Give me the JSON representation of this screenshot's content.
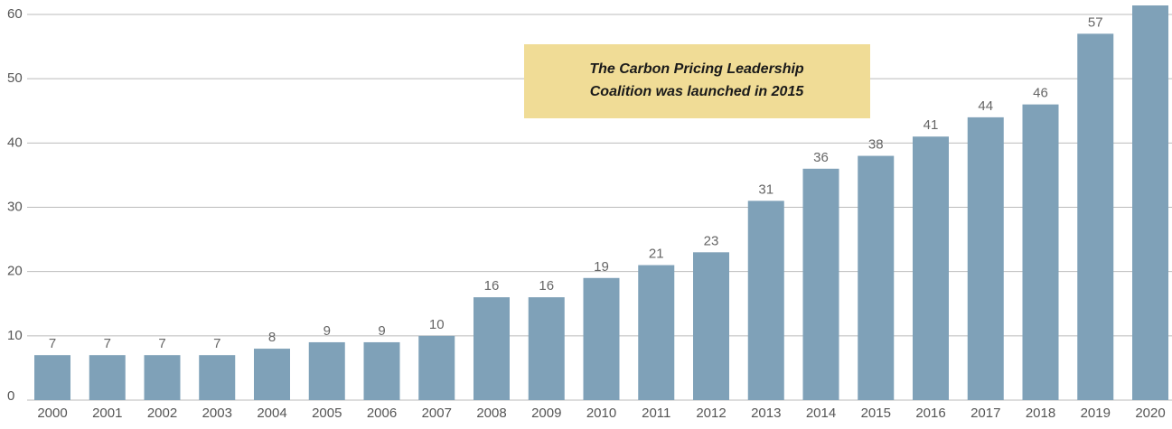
{
  "chart_data": {
    "type": "bar",
    "categories": [
      "2000",
      "2001",
      "2002",
      "2003",
      "2004",
      "2005",
      "2006",
      "2007",
      "2008",
      "2009",
      "2010",
      "2011",
      "2012",
      "2013",
      "2014",
      "2015",
      "2016",
      "2017",
      "2018",
      "2019",
      "2020"
    ],
    "values": [
      7,
      7,
      7,
      7,
      8,
      9,
      9,
      10,
      16,
      16,
      19,
      21,
      23,
      31,
      36,
      38,
      41,
      44,
      46,
      57,
      62
    ],
    "color": "#7fa1b8",
    "ylim": [
      0,
      60
    ],
    "yticks": [
      0,
      10,
      20,
      30,
      40,
      50,
      60
    ],
    "grid": true,
    "annotation": [
      "The Carbon Pricing Leadership",
      "Coalition was launched in 2015"
    ],
    "annotation_color": "#f0dc96"
  }
}
